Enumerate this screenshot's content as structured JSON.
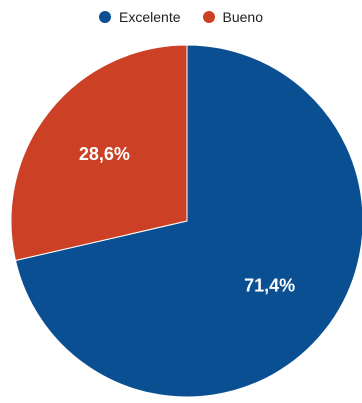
{
  "chart_data": {
    "type": "pie",
    "title": "",
    "series": [
      {
        "name": "",
        "values": [
          71.4,
          28.6
        ]
      }
    ],
    "categories": [
      "Excelente",
      "Bueno"
    ],
    "labels": [
      "71,4%",
      "28,6%"
    ],
    "colors": [
      "#0b4f93",
      "#cc4125"
    ],
    "legend": {
      "placement": "top",
      "items": [
        {
          "label": "Excelente",
          "color": "#0b4f93"
        },
        {
          "label": "Bueno",
          "color": "#cc4125"
        }
      ]
    }
  }
}
